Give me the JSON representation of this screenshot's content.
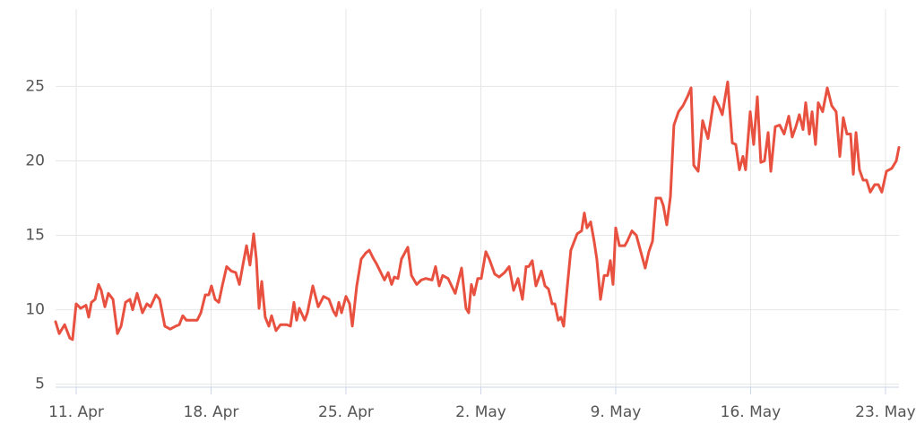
{
  "chart_data": {
    "type": "line",
    "color": "#e8503f",
    "grid": true,
    "xlim": [
      -1.07,
      42.7
    ],
    "xticks": [
      {
        "value": 0,
        "label": "11. Apr"
      },
      {
        "value": 7,
        "label": "18. Apr"
      },
      {
        "value": 14,
        "label": "25. Apr"
      },
      {
        "value": 21,
        "label": "2. May"
      },
      {
        "value": 28,
        "label": "9. May"
      },
      {
        "value": 35,
        "label": "16. May"
      },
      {
        "value": 42,
        "label": "23. May"
      }
    ],
    "ylim": [
      4.8,
      30.2
    ],
    "yticks": [
      5,
      10,
      15,
      20,
      25
    ],
    "x": [
      -1.07,
      -0.88,
      -0.6,
      -0.33,
      -0.19,
      0,
      0.23,
      0.51,
      0.65,
      0.79,
      0.98,
      1.16,
      1.3,
      1.49,
      1.67,
      1.91,
      2.14,
      2.33,
      2.56,
      2.79,
      2.93,
      3.16,
      3.44,
      3.67,
      3.86,
      4.14,
      4.33,
      4.6,
      4.88,
      5.16,
      5.35,
      5.53,
      5.72,
      6,
      6.28,
      6.47,
      6.7,
      6.88,
      7.02,
      7.21,
      7.4,
      7.58,
      7.81,
      8.05,
      8.28,
      8.47,
      8.65,
      8.84,
      9.02,
      9.21,
      9.35,
      9.49,
      9.63,
      9.81,
      10,
      10.14,
      10.37,
      10.6,
      10.93,
      11.12,
      11.3,
      11.44,
      11.58,
      11.86,
      12,
      12.28,
      12.56,
      12.84,
      13.12,
      13.35,
      13.49,
      13.63,
      13.77,
      14,
      14.19,
      14.33,
      14.56,
      14.79,
      15.02,
      15.21,
      15.4,
      15.58,
      15.81,
      16,
      16.19,
      16.37,
      16.51,
      16.7,
      16.88,
      17.21,
      17.4,
      17.67,
      17.91,
      18.14,
      18.47,
      18.65,
      18.84,
      19.02,
      19.3,
      19.67,
      20,
      20.23,
      20.37,
      20.51,
      20.65,
      20.84,
      21.02,
      21.26,
      21.44,
      21.72,
      21.95,
      22.23,
      22.47,
      22.7,
      22.93,
      23.16,
      23.35,
      23.49,
      23.67,
      23.86,
      24.14,
      24.33,
      24.51,
      24.7,
      24.84,
      25.02,
      25.16,
      25.3,
      25.49,
      25.67,
      26,
      26.23,
      26.37,
      26.51,
      26.7,
      26.88,
      27.02,
      27.21,
      27.4,
      27.58,
      27.72,
      27.86,
      28,
      28.19,
      28.47,
      28.6,
      28.84,
      29.07,
      29.3,
      29.53,
      29.72,
      29.91,
      30.09,
      30.33,
      30.47,
      30.65,
      30.84,
      31.02,
      31.26,
      31.49,
      31.72,
      31.91,
      32.05,
      32.28,
      32.51,
      32.79,
      33.12,
      33.35,
      33.53,
      33.81,
      34.05,
      34.23,
      34.42,
      34.6,
      34.74,
      34.98,
      35.16,
      35.35,
      35.53,
      35.72,
      35.91,
      36.05,
      36.28,
      36.51,
      36.74,
      36.98,
      37.16,
      37.35,
      37.53,
      37.72,
      37.86,
      38.05,
      38.19,
      38.37,
      38.51,
      38.74,
      38.98,
      39.21,
      39.44,
      39.63,
      39.81,
      40,
      40.19,
      40.33,
      40.47,
      40.65,
      40.84,
      41.02,
      41.21,
      41.44,
      41.63,
      41.81,
      42.05,
      42.33,
      42.56,
      42.7
    ],
    "values": [
      9.2,
      8.4,
      9.0,
      8.1,
      8.0,
      10.4,
      10.1,
      10.3,
      9.5,
      10.5,
      10.7,
      11.7,
      11.3,
      10.2,
      11.1,
      10.7,
      8.4,
      8.9,
      10.5,
      10.7,
      10.0,
      11.1,
      9.8,
      10.4,
      10.2,
      11.0,
      10.7,
      8.9,
      8.7,
      8.9,
      9.0,
      9.6,
      9.3,
      9.3,
      9.3,
      9.8,
      11.0,
      11.0,
      11.6,
      10.7,
      10.5,
      11.6,
      12.9,
      12.6,
      12.5,
      11.7,
      13.0,
      14.3,
      13.0,
      15.1,
      13.4,
      10.1,
      11.9,
      9.5,
      8.9,
      9.6,
      8.6,
      9.0,
      9.0,
      8.9,
      10.5,
      9.3,
      10.1,
      9.3,
      9.8,
      11.6,
      10.2,
      10.9,
      10.7,
      9.9,
      9.6,
      10.5,
      9.8,
      10.9,
      10.4,
      8.9,
      11.6,
      13.4,
      13.8,
      14.0,
      13.5,
      13.1,
      12.5,
      12.0,
      12.5,
      11.7,
      12.2,
      12.1,
      13.4,
      14.2,
      12.3,
      11.7,
      12.0,
      12.1,
      12.0,
      12.9,
      11.6,
      12.3,
      12.1,
      11.1,
      12.8,
      10.1,
      9.8,
      11.7,
      11.0,
      12.1,
      12.1,
      13.9,
      13.4,
      12.4,
      12.2,
      12.5,
      12.9,
      11.3,
      12.1,
      10.7,
      12.9,
      12.9,
      13.3,
      11.6,
      12.6,
      11.6,
      11.4,
      10.4,
      10.4,
      9.3,
      9.5,
      8.9,
      11.6,
      14.0,
      15.1,
      15.3,
      16.5,
      15.5,
      15.9,
      14.6,
      13.4,
      10.7,
      12.3,
      12.3,
      13.3,
      11.7,
      15.5,
      14.3,
      14.3,
      14.6,
      15.3,
      15.0,
      13.9,
      12.8,
      13.9,
      14.6,
      17.5,
      17.5,
      17.0,
      15.7,
      17.6,
      22.4,
      23.3,
      23.7,
      24.3,
      24.9,
      19.7,
      19.3,
      22.7,
      21.5,
      24.3,
      23.7,
      23.1,
      25.3,
      21.2,
      21.1,
      19.4,
      20.3,
      19.4,
      23.3,
      21.1,
      24.3,
      19.9,
      20.0,
      21.9,
      19.3,
      22.3,
      22.4,
      21.8,
      23.0,
      21.6,
      22.3,
      23.1,
      22.1,
      23.9,
      21.8,
      23.3,
      21.1,
      23.9,
      23.3,
      24.9,
      23.7,
      23.3,
      20.3,
      22.9,
      21.8,
      21.8,
      19.1,
      21.9,
      19.4,
      18.7,
      18.7,
      17.9,
      18.4,
      18.4,
      17.9,
      19.3,
      19.5,
      20.0,
      20.9
    ]
  }
}
